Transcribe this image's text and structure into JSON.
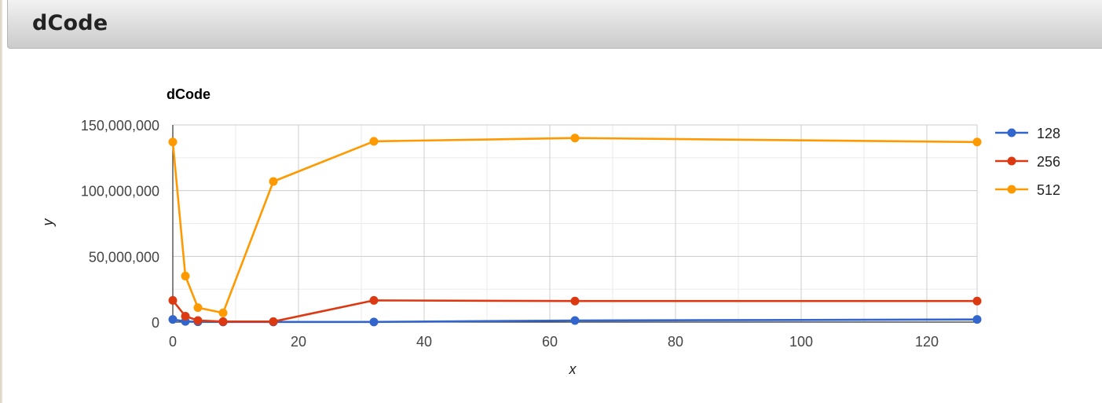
{
  "header": {
    "title": "dCode"
  },
  "chart_data": {
    "type": "line",
    "title": "dCode",
    "xlabel": "x",
    "ylabel": "y",
    "xlim": [
      0,
      128
    ],
    "ylim": [
      0,
      150000000
    ],
    "x_ticks": [
      0,
      20,
      40,
      60,
      80,
      100,
      120
    ],
    "x_tick_labels": [
      "0",
      "20",
      "40",
      "60",
      "80",
      "100",
      "120"
    ],
    "x_minor_ticks": [
      10,
      30,
      50,
      70,
      90,
      110
    ],
    "y_ticks": [
      0,
      50000000,
      100000000,
      150000000
    ],
    "y_tick_labels": [
      "0",
      "50,000,000",
      "100,000,000",
      "150,000,000"
    ],
    "y_minor_ticks": [
      25000000,
      75000000,
      125000000
    ],
    "grid": true,
    "legend_position": "right",
    "series": [
      {
        "name": "128",
        "color": "#3366cc",
        "x": [
          0,
          2,
          4,
          8,
          16,
          32,
          64,
          128
        ],
        "y": [
          2000000,
          500000,
          200000,
          100000,
          100000,
          100000,
          1200000,
          2000000
        ]
      },
      {
        "name": "256",
        "color": "#dc3912",
        "x": [
          0,
          2,
          4,
          8,
          16,
          32,
          64,
          128
        ],
        "y": [
          16500000,
          4500000,
          1200000,
          400000,
          400000,
          16500000,
          16000000,
          16000000
        ]
      },
      {
        "name": "512",
        "color": "#ff9900",
        "x": [
          0,
          2,
          4,
          8,
          16,
          32,
          64,
          128
        ],
        "y": [
          137000000,
          35000000,
          11000000,
          7000000,
          107000000,
          137500000,
          140000000,
          137000000
        ]
      }
    ]
  }
}
